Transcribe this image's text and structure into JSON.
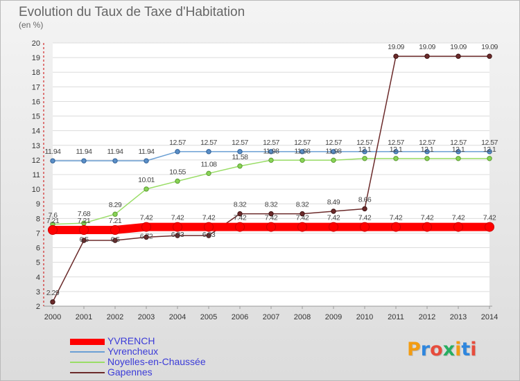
{
  "title": "Evolution du Taux de Taxe d'Habitation",
  "unit_label": "(en %)",
  "logo_text": "Proxiti",
  "logo_colors": [
    "#f39c12",
    "#2e86de",
    "#e74c3c",
    "#27ae60",
    "#f39c12",
    "#2e86de",
    "#e74c3c"
  ],
  "chart_data": {
    "type": "line",
    "title": "Evolution du Taux de Taxe d'Habitation",
    "ylabel": "(en %)",
    "xlabel": "",
    "x": [
      2000,
      2001,
      2002,
      2003,
      2004,
      2005,
      2006,
      2007,
      2008,
      2009,
      2010,
      2011,
      2012,
      2013,
      2014
    ],
    "yticks": [
      2,
      3,
      4,
      5,
      6,
      7,
      8,
      9,
      10,
      11,
      12,
      13,
      14,
      15,
      16,
      17,
      18,
      19,
      20
    ],
    "ylim": [
      2,
      20
    ],
    "grid": "horizontal",
    "legend_position": "bottom-left",
    "series": [
      {
        "name": "YVRENCH",
        "color": "#ff0000",
        "values": [
          7.21,
          7.21,
          7.21,
          7.42,
          7.42,
          7.42,
          7.42,
          7.42,
          7.42,
          7.42,
          7.42,
          7.42,
          7.42,
          7.42,
          7.42
        ],
        "labels": [
          "7.21",
          "7.21",
          "7.21",
          "7.42",
          "7.42",
          "7.42",
          "7.42",
          "7.42",
          "7.42",
          "7.42",
          "7.42",
          "7.42",
          "7.42",
          "7.42",
          "7.42"
        ]
      },
      {
        "name": "Yvrencheux",
        "color": "#6a9fd4",
        "values": [
          11.94,
          11.94,
          11.94,
          11.94,
          12.57,
          12.57,
          12.57,
          12.57,
          12.57,
          12.57,
          12.57,
          12.57,
          12.57,
          12.57,
          12.57
        ],
        "labels": [
          "11.94",
          "11.94",
          "11.94",
          "11.94",
          "12.57",
          "12.57",
          "12.57",
          "12.57",
          "12.57",
          "12.57",
          "12.57",
          "12.57",
          "12.57",
          "12.57",
          "12.57"
        ]
      },
      {
        "name": "Noyelles-en-Chaussée",
        "color": "#99dd66",
        "values": [
          7.6,
          7.68,
          8.29,
          10.01,
          10.55,
          11.08,
          11.58,
          11.98,
          11.98,
          11.98,
          12.1,
          12.1,
          12.1,
          12.1,
          12.1
        ],
        "labels": [
          "7.6",
          "7.68",
          "8.29",
          "10.01",
          "10.55",
          "11.08",
          "11.58",
          "11.98",
          "11.98",
          "11.98",
          "12.1",
          "12.1",
          "12.1",
          "12.1",
          "12.1"
        ]
      },
      {
        "name": "Gapennes",
        "color": "#6b2a2a",
        "values": [
          2.29,
          6.5,
          6.5,
          6.72,
          6.83,
          6.83,
          8.32,
          8.32,
          8.32,
          8.49,
          8.66,
          19.09,
          19.09,
          19.09,
          19.09
        ],
        "labels": [
          "2.29",
          "6.5",
          "6.5",
          "6.72",
          "6.83",
          "6.83",
          "8.32",
          "8.32",
          "8.32",
          "8.49",
          "8.66",
          "19.09",
          "19.09",
          "19.09",
          "19.09"
        ]
      }
    ]
  }
}
